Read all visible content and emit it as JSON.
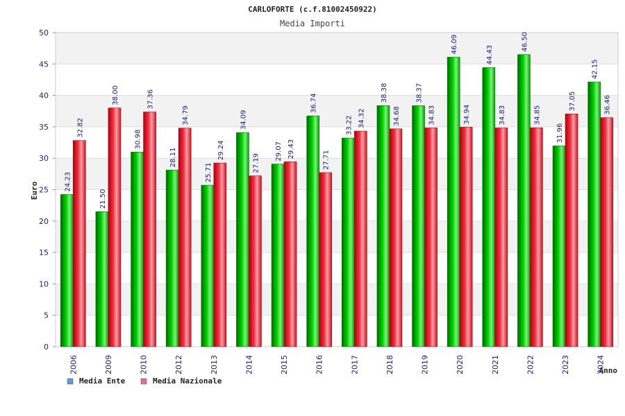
{
  "chart_data": {
    "type": "bar",
    "title": "CARLOFORTE (c.f.81002450922)",
    "subtitle": "Media Importi",
    "xlabel": "Anno",
    "ylabel": "Euro",
    "ylim": [
      0,
      50
    ],
    "yticks": [
      "0",
      "5",
      "10",
      "15",
      "20",
      "25",
      "30",
      "35",
      "40",
      "45",
      "50"
    ],
    "grid": true,
    "legend_position": "bottom-left",
    "categories": [
      "2006",
      "2009",
      "2010",
      "2012",
      "2013",
      "2014",
      "2015",
      "2016",
      "2017",
      "2018",
      "2019",
      "2020",
      "2021",
      "2022",
      "2023",
      "2024"
    ],
    "series": [
      {
        "name": "Media Ente",
        "color": "#00b000",
        "legend_color": "#5b9bd5",
        "values": [
          24.23,
          21.5,
          30.98,
          28.11,
          25.71,
          34.09,
          29.07,
          36.74,
          33.22,
          38.38,
          38.37,
          46.09,
          44.43,
          46.5,
          31.96,
          42.15
        ],
        "labels": [
          "24.23",
          "21.50",
          "30.98",
          "28.11",
          "25.71",
          "34.09",
          "29.07",
          "36.74",
          "33.22",
          "38.38",
          "38.37",
          "46.09",
          "44.43",
          "46.50",
          "31.96",
          "42.15"
        ]
      },
      {
        "name": "Media Nazionale",
        "color": "#e01020",
        "legend_color": "#e07090",
        "values": [
          32.82,
          38.0,
          37.36,
          34.79,
          29.24,
          27.19,
          29.43,
          27.71,
          34.32,
          34.68,
          34.83,
          34.94,
          34.83,
          34.85,
          37.05,
          36.46
        ],
        "labels": [
          "32.82",
          "38.00",
          "37.36",
          "34.79",
          "29.24",
          "27.19",
          "29.43",
          "27.71",
          "34.32",
          "34.68",
          "34.83",
          "34.94",
          "34.83",
          "34.85",
          "37.05",
          "36.46"
        ]
      }
    ]
  }
}
